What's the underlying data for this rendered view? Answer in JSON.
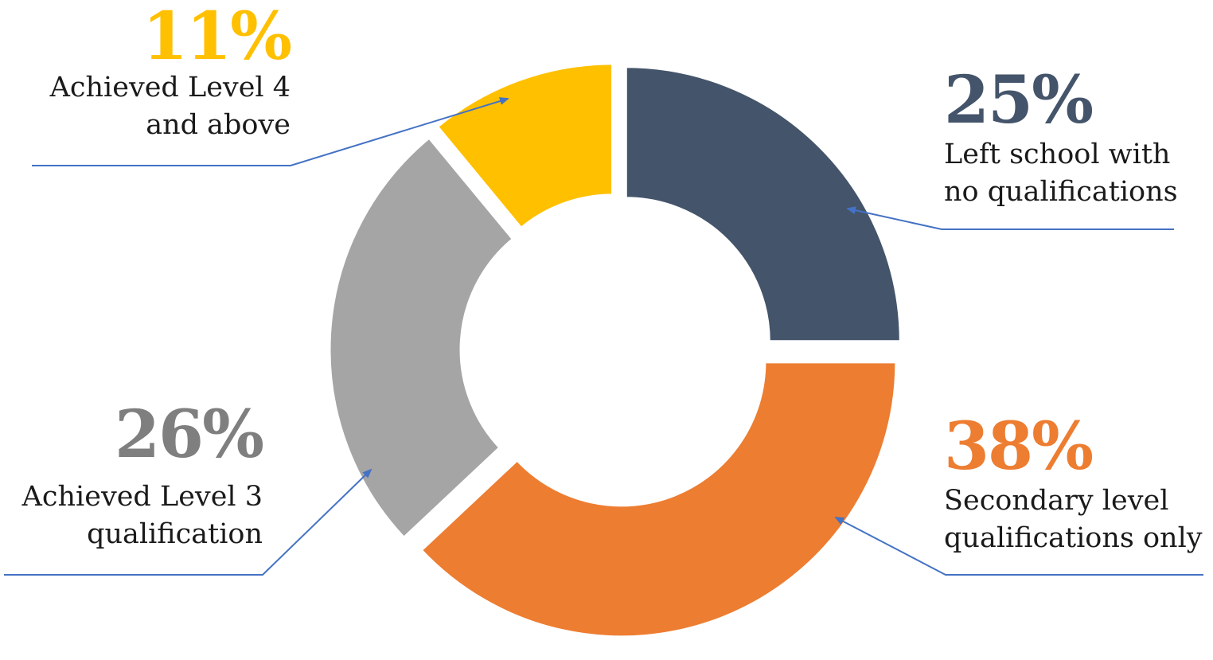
{
  "chart_data": {
    "type": "pie",
    "style": "donut",
    "title": "",
    "categories": [
      "Left school with no qualifications",
      "Secondary level qualifications only",
      "Achieved Level 3 qualification",
      "Achieved Level 4 and above"
    ],
    "values": [
      25,
      38,
      26,
      11
    ],
    "labels": [
      "25%",
      "38%",
      "26%",
      "11%"
    ],
    "colors": [
      "#44546a",
      "#ed7d31",
      "#a5a5a5",
      "#ffc000"
    ],
    "legend": "none"
  },
  "callouts": {
    "level4": {
      "pct": "11%",
      "line1": "Achieved Level 4",
      "line2": "and above",
      "color": "#ffc000"
    },
    "noqual": {
      "pct": "25%",
      "line1": "Left school with",
      "line2": "no qualifications",
      "color": "#44546a"
    },
    "level3": {
      "pct": "26%",
      "line1": "Achieved Level 3",
      "line2": "qualification",
      "color": "#7f7f7f"
    },
    "secondary": {
      "pct": "38%",
      "line1": "Secondary level",
      "line2": "qualifications only",
      "color": "#ed7d31"
    }
  },
  "leader_color": "#4472c4"
}
